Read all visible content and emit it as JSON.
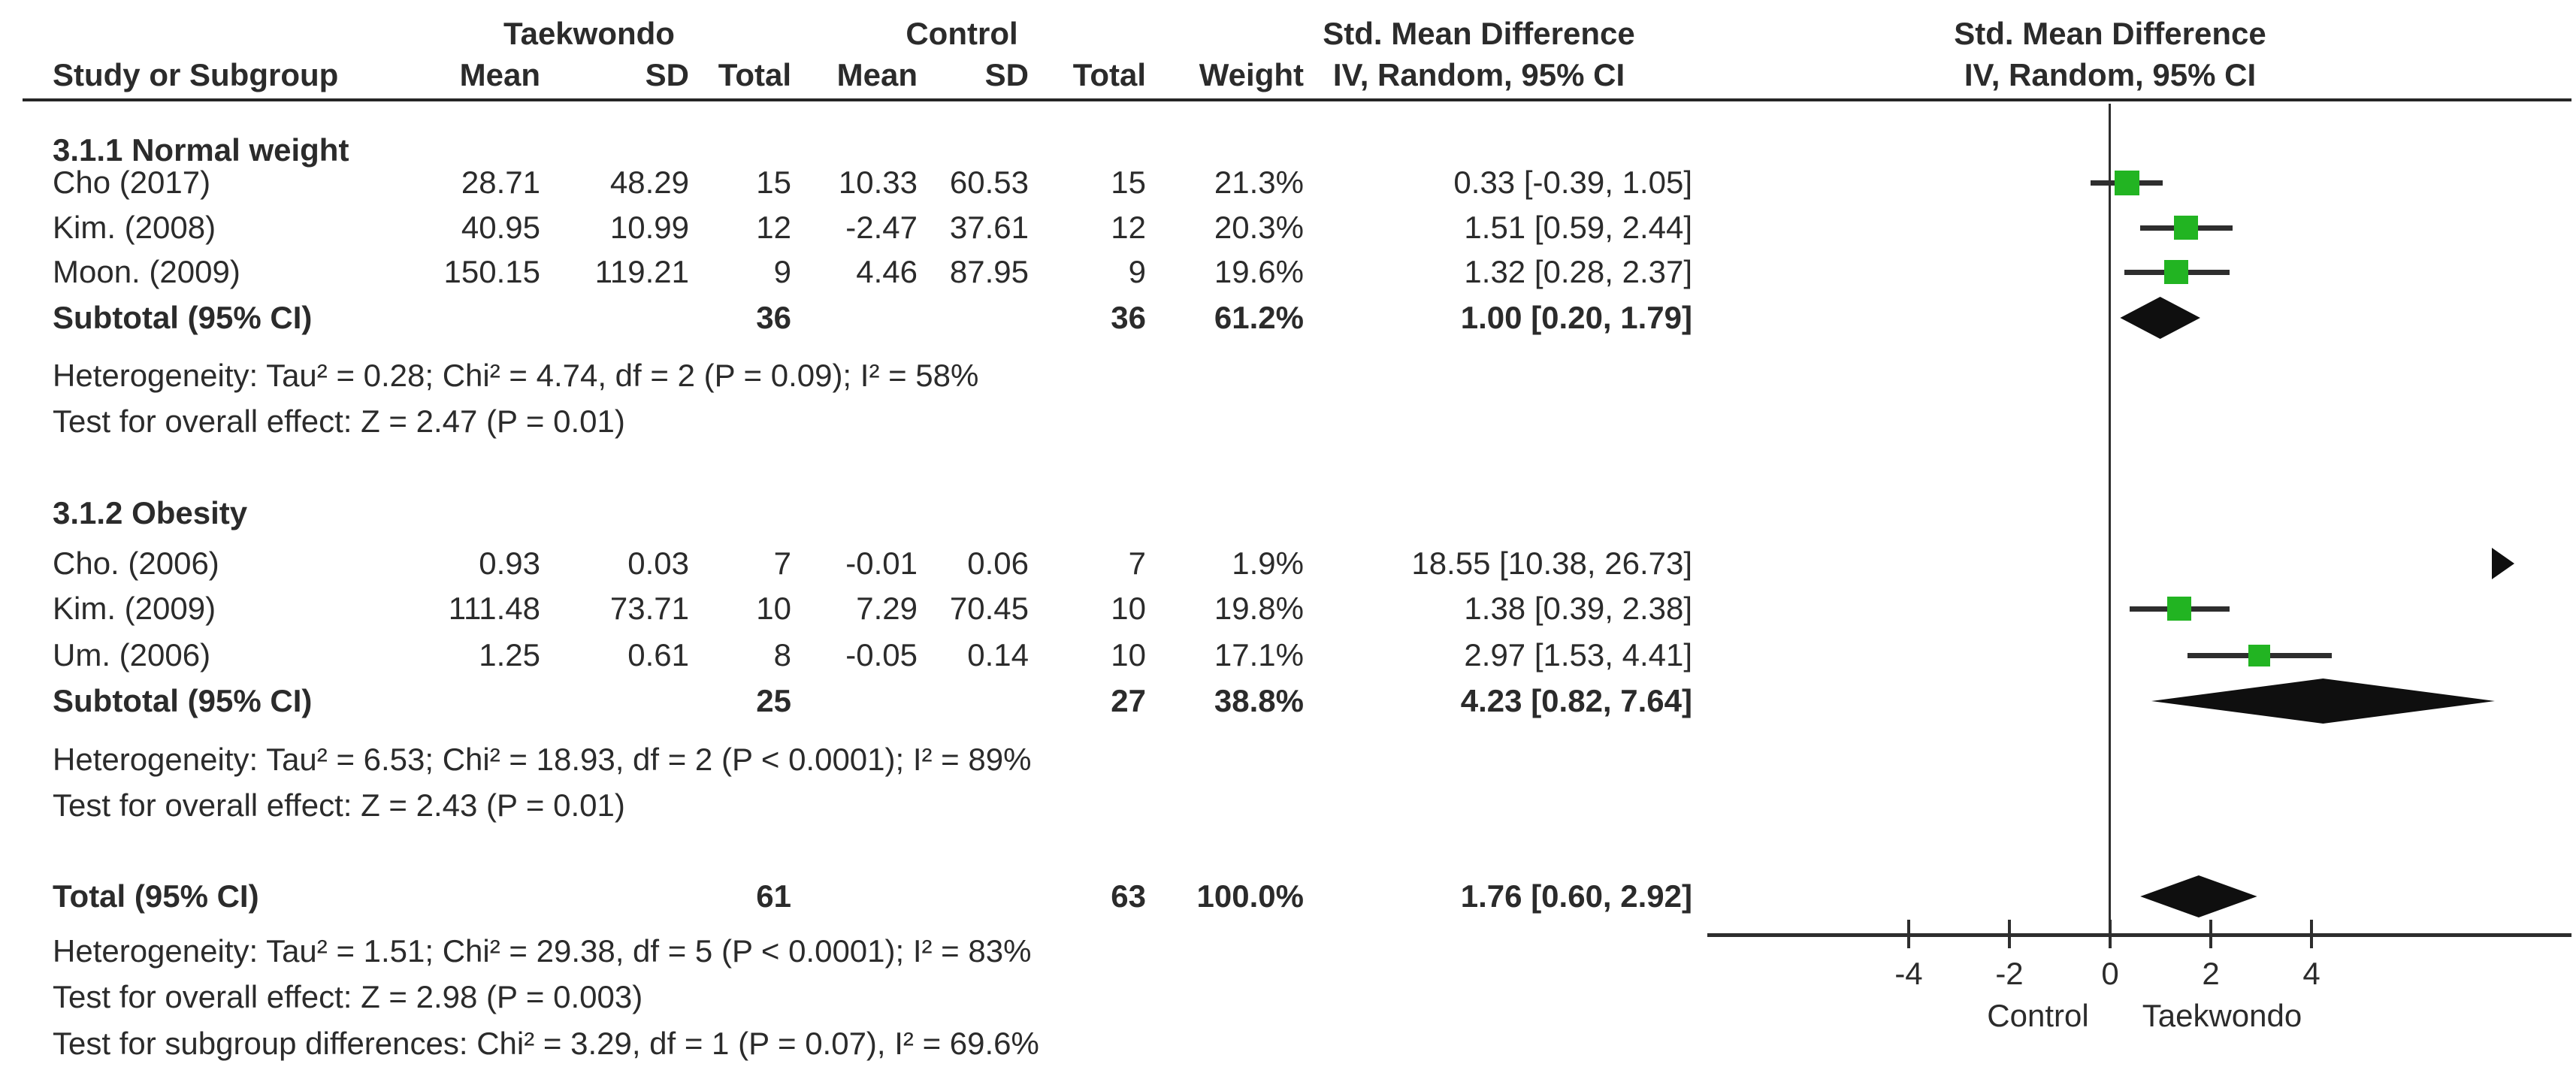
{
  "chart_data": {
    "type": "scatter",
    "subtype": "forest-plot",
    "title": "Std. Mean Difference meta-analysis (IV, Random, 95% CI)",
    "header": {
      "group1": "Taekwondo",
      "group2": "Control",
      "smd1": "Std. Mean Difference",
      "smd2": "Std. Mean Difference",
      "method1": "IV, Random, 95% CI",
      "method2": "IV, Random, 95% CI"
    },
    "columns": {
      "study": "Study or Subgroup",
      "mean": "Mean",
      "sd": "SD",
      "total": "Total",
      "weight": "Weight"
    },
    "sections": [
      {
        "name": "3.1.1 Normal weight",
        "studies": [
          {
            "study": "Cho (2017)",
            "mean1": "28.71",
            "sd1": "48.29",
            "total1": "15",
            "mean2": "10.33",
            "sd2": "60.53",
            "total2": "15",
            "weight": "21.3%",
            "weight_pct": 21.3,
            "ci_text": "0.33 [-0.39, 1.05]",
            "effect": 0.33,
            "lo": -0.39,
            "hi": 1.05
          },
          {
            "study": "Kim. (2008)",
            "mean1": "40.95",
            "sd1": "10.99",
            "total1": "12",
            "mean2": "-2.47",
            "sd2": "37.61",
            "total2": "12",
            "weight": "20.3%",
            "weight_pct": 20.3,
            "ci_text": "1.51 [0.59, 2.44]",
            "effect": 1.51,
            "lo": 0.59,
            "hi": 2.44
          },
          {
            "study": "Moon. (2009)",
            "mean1": "150.15",
            "sd1": "119.21",
            "total1": "9",
            "mean2": "4.46",
            "sd2": "87.95",
            "total2": "9",
            "weight": "19.6%",
            "weight_pct": 19.6,
            "ci_text": "1.32 [0.28, 2.37]",
            "effect": 1.32,
            "lo": 0.28,
            "hi": 2.37
          }
        ],
        "subtotal": {
          "label": "Subtotal (95% CI)",
          "total1": "36",
          "total2": "36",
          "weight": "61.2%",
          "ci_text": "1.00 [0.20, 1.79]",
          "effect": 1.0,
          "lo": 0.2,
          "hi": 1.79
        },
        "heterogeneity": "Heterogeneity: Tau² = 0.28; Chi² = 4.74, df = 2 (P = 0.09); I² = 58%",
        "overall": "Test for overall effect: Z = 2.47 (P = 0.01)"
      },
      {
        "name": "3.1.2 Obesity",
        "studies": [
          {
            "study": "Cho. (2006)",
            "mean1": "0.93",
            "sd1": "0.03",
            "total1": "7",
            "mean2": "-0.01",
            "sd2": "0.06",
            "total2": "7",
            "weight": "1.9%",
            "weight_pct": 1.9,
            "ci_text": "18.55 [10.38, 26.73]",
            "effect": 18.55,
            "lo": 10.38,
            "hi": 26.73
          },
          {
            "study": "Kim. (2009)",
            "mean1": "111.48",
            "sd1": "73.71",
            "total1": "10",
            "mean2": "7.29",
            "sd2": "70.45",
            "total2": "10",
            "weight": "19.8%",
            "weight_pct": 19.8,
            "ci_text": "1.38 [0.39, 2.38]",
            "effect": 1.38,
            "lo": 0.39,
            "hi": 2.38
          },
          {
            "study": "Um. (2006)",
            "mean1": "1.25",
            "sd1": "0.61",
            "total1": "8",
            "mean2": "-0.05",
            "sd2": "0.14",
            "total2": "10",
            "weight": "17.1%",
            "weight_pct": 17.1,
            "ci_text": "2.97 [1.53, 4.41]",
            "effect": 2.97,
            "lo": 1.53,
            "hi": 4.41
          }
        ],
        "subtotal": {
          "label": "Subtotal (95% CI)",
          "total1": "25",
          "total2": "27",
          "weight": "38.8%",
          "ci_text": "4.23 [0.82, 7.64]",
          "effect": 4.23,
          "lo": 0.82,
          "hi": 7.64
        },
        "heterogeneity": "Heterogeneity: Tau² = 6.53; Chi² = 18.93, df = 2 (P < 0.0001); I² = 89%",
        "overall": "Test for overall effect: Z = 2.43 (P = 0.01)"
      }
    ],
    "total": {
      "label": "Total (95% CI)",
      "total1": "61",
      "total2": "63",
      "weight": "100.0%",
      "ci_text": "1.76 [0.60, 2.92]",
      "effect": 1.76,
      "lo": 0.6,
      "hi": 2.92,
      "heterogeneity": "Heterogeneity: Tau² = 1.51; Chi² = 29.38, df = 5 (P < 0.0001); I² = 83%",
      "overall": "Test for overall effect: Z = 2.98 (P = 0.003)",
      "subgroup": "Test for subgroup differences: Chi² = 3.29, df = 1 (P = 0.07), I² = 69.6%"
    },
    "axis": {
      "ticks": [
        -4,
        -2,
        0,
        2,
        4
      ],
      "tick_labels": [
        "-4",
        "-2",
        "0",
        "2",
        "4"
      ],
      "xlim": [
        -8,
        9.2
      ],
      "left_label": "Control",
      "right_label": "Taekwondo"
    },
    "colors": {
      "marker_green": "#22b422",
      "line_black": "#2e2e2e",
      "diamond_black": "#0f0f0f"
    }
  }
}
